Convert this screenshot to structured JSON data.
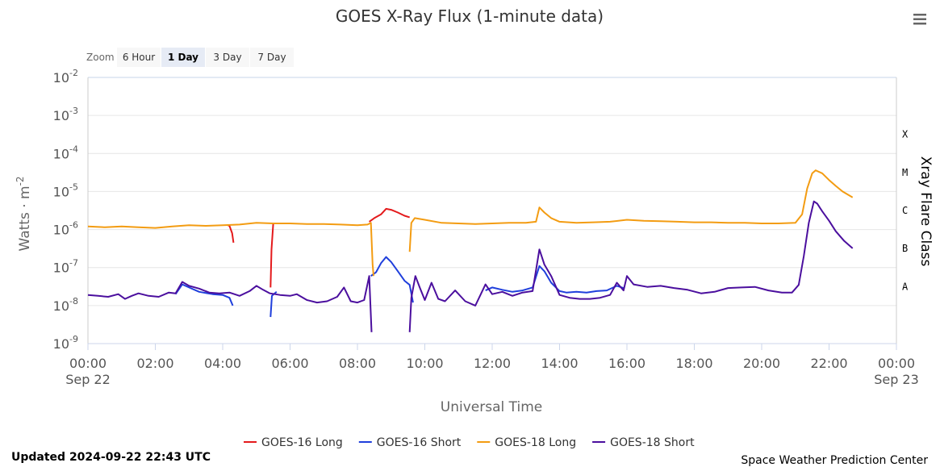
{
  "chart_data": {
    "type": "line",
    "title": "GOES X-Ray Flux (1-minute data)",
    "xlabel": "Universal Time",
    "ylabel": "Watts · m",
    "ylabel_sup": "-2",
    "right_axis_title": "Xray Flare Class",
    "y_scale": "log",
    "ylim": [
      1e-09,
      0.01
    ],
    "xlim": [
      0,
      24
    ],
    "grid": true,
    "legend_position": "bottom-center",
    "y_ticks": [
      {
        "base": "10",
        "exp": "-2",
        "value": 0.01
      },
      {
        "base": "10",
        "exp": "-3",
        "value": 0.001
      },
      {
        "base": "10",
        "exp": "-4",
        "value": 0.0001
      },
      {
        "base": "10",
        "exp": "-5",
        "value": 1e-05
      },
      {
        "base": "10",
        "exp": "-6",
        "value": 1e-06
      },
      {
        "base": "10",
        "exp": "-7",
        "value": 1e-07
      },
      {
        "base": "10",
        "exp": "-8",
        "value": 1e-08
      },
      {
        "base": "10",
        "exp": "-9",
        "value": 1e-09
      }
    ],
    "x_ticks": [
      {
        "label": "00:00",
        "sub": "Sep 22",
        "value": 0
      },
      {
        "label": "02:00",
        "sub": "",
        "value": 2
      },
      {
        "label": "04:00",
        "sub": "",
        "value": 4
      },
      {
        "label": "06:00",
        "sub": "",
        "value": 6
      },
      {
        "label": "08:00",
        "sub": "",
        "value": 8
      },
      {
        "label": "10:00",
        "sub": "",
        "value": 10
      },
      {
        "label": "12:00",
        "sub": "",
        "value": 12
      },
      {
        "label": "14:00",
        "sub": "",
        "value": 14
      },
      {
        "label": "16:00",
        "sub": "",
        "value": 16
      },
      {
        "label": "18:00",
        "sub": "",
        "value": 18
      },
      {
        "label": "20:00",
        "sub": "",
        "value": 20
      },
      {
        "label": "22:00",
        "sub": "",
        "value": 22
      },
      {
        "label": "00:00",
        "sub": "Sep 23",
        "value": 24
      }
    ],
    "flare_classes": [
      {
        "label": "X",
        "value": 0.0001
      },
      {
        "label": "M",
        "value": 1e-05
      },
      {
        "label": "C",
        "value": 1e-06
      },
      {
        "label": "B",
        "value": 1e-07
      },
      {
        "label": "A",
        "value": 1e-08
      }
    ],
    "series": [
      {
        "name": "GOES-16 Long",
        "color": "#e41a1c",
        "segments": [
          [
            [
              4.15,
              1.3e-06
            ],
            [
              4.2,
              1.25e-06
            ],
            [
              4.28,
              8e-07
            ],
            [
              4.32,
              4.5e-07
            ]
          ],
          [
            [
              5.42,
              3e-08
            ],
            [
              5.45,
              3e-07
            ],
            [
              5.5,
              1.4e-06
            ]
          ],
          [
            [
              8.35,
              1.6e-06
            ],
            [
              8.5,
              2e-06
            ],
            [
              8.7,
              2.5e-06
            ],
            [
              8.85,
              3.5e-06
            ],
            [
              9.0,
              3.3e-06
            ],
            [
              9.2,
              2.8e-06
            ],
            [
              9.4,
              2.3e-06
            ],
            [
              9.55,
              2.1e-06
            ]
          ]
        ]
      },
      {
        "name": "GOES-16 Short",
        "color": "#1f3fdc",
        "segments": [
          [
            [
              2.6,
              2e-08
            ],
            [
              2.8,
              3.6e-08
            ],
            [
              3.0,
              3e-08
            ],
            [
              3.3,
              2.3e-08
            ],
            [
              3.7,
              2e-08
            ],
            [
              4.0,
              1.9e-08
            ],
            [
              4.2,
              1.6e-08
            ],
            [
              4.3,
              1e-08
            ]
          ],
          [
            [
              5.42,
              5e-09
            ],
            [
              5.46,
              1.8e-08
            ],
            [
              5.6,
              2.3e-08
            ]
          ],
          [
            [
              8.4,
              6e-08
            ],
            [
              8.55,
              7.5e-08
            ],
            [
              8.7,
              1.3e-07
            ],
            [
              8.85,
              1.9e-07
            ],
            [
              9.0,
              1.4e-07
            ],
            [
              9.2,
              8e-08
            ],
            [
              9.4,
              4.5e-08
            ],
            [
              9.55,
              3.5e-08
            ],
            [
              9.65,
              1.2e-08
            ]
          ],
          [
            [
              11.8,
              2.5e-08
            ],
            [
              12.0,
              3e-08
            ],
            [
              12.3,
              2.6e-08
            ],
            [
              12.6,
              2.3e-08
            ],
            [
              12.9,
              2.5e-08
            ],
            [
              13.2,
              3e-08
            ],
            [
              13.4,
              1.1e-07
            ],
            [
              13.55,
              8e-08
            ],
            [
              13.75,
              4e-08
            ],
            [
              14.0,
              2.4e-08
            ],
            [
              14.2,
              2.2e-08
            ],
            [
              14.5,
              2.3e-08
            ],
            [
              14.8,
              2.2e-08
            ],
            [
              15.1,
              2.4e-08
            ],
            [
              15.4,
              2.5e-08
            ],
            [
              15.7,
              3.3e-08
            ],
            [
              15.9,
              2.9e-08
            ]
          ]
        ]
      },
      {
        "name": "GOES-18 Long",
        "color": "#f39c12",
        "segments": [
          [
            [
              0.0,
              1.2e-06
            ],
            [
              0.5,
              1.15e-06
            ],
            [
              1.0,
              1.2e-06
            ],
            [
              1.5,
              1.15e-06
            ],
            [
              2.0,
              1.1e-06
            ],
            [
              2.5,
              1.2e-06
            ],
            [
              3.0,
              1.3e-06
            ],
            [
              3.5,
              1.25e-06
            ],
            [
              4.0,
              1.3e-06
            ],
            [
              4.5,
              1.35e-06
            ],
            [
              5.0,
              1.5e-06
            ],
            [
              5.5,
              1.45e-06
            ],
            [
              6.0,
              1.45e-06
            ],
            [
              6.5,
              1.4e-06
            ],
            [
              7.0,
              1.4e-06
            ],
            [
              7.5,
              1.35e-06
            ],
            [
              8.0,
              1.3e-06
            ],
            [
              8.3,
              1.35e-06
            ],
            [
              8.4,
              1.5e-06
            ],
            [
              8.45,
              1.2e-07
            ],
            [
              8.48,
              6e-08
            ]
          ],
          [
            [
              9.55,
              2.6e-07
            ],
            [
              9.6,
              1.5e-06
            ],
            [
              9.7,
              2e-06
            ],
            [
              10.0,
              1.8e-06
            ],
            [
              10.5,
              1.5e-06
            ],
            [
              11.0,
              1.45e-06
            ],
            [
              11.5,
              1.4e-06
            ],
            [
              12.0,
              1.45e-06
            ],
            [
              12.5,
              1.5e-06
            ],
            [
              13.0,
              1.5e-06
            ],
            [
              13.3,
              1.6e-06
            ],
            [
              13.4,
              3.8e-06
            ],
            [
              13.55,
              2.8e-06
            ],
            [
              13.75,
              2e-06
            ],
            [
              14.0,
              1.6e-06
            ],
            [
              14.5,
              1.5e-06
            ],
            [
              15.0,
              1.55e-06
            ],
            [
              15.5,
              1.6e-06
            ],
            [
              16.0,
              1.8e-06
            ],
            [
              16.5,
              1.7e-06
            ],
            [
              17.0,
              1.65e-06
            ],
            [
              17.5,
              1.6e-06
            ],
            [
              18.0,
              1.55e-06
            ],
            [
              18.5,
              1.55e-06
            ],
            [
              19.0,
              1.5e-06
            ],
            [
              19.5,
              1.5e-06
            ],
            [
              20.0,
              1.45e-06
            ],
            [
              20.5,
              1.45e-06
            ],
            [
              21.0,
              1.5e-06
            ],
            [
              21.2,
              2.5e-06
            ],
            [
              21.35,
              1.2e-05
            ],
            [
              21.5,
              3e-05
            ],
            [
              21.6,
              3.6e-05
            ],
            [
              21.8,
              3e-05
            ],
            [
              22.0,
              2e-05
            ],
            [
              22.2,
              1.4e-05
            ],
            [
              22.4,
              1e-05
            ],
            [
              22.7,
              7e-06
            ]
          ]
        ]
      },
      {
        "name": "GOES-18 Short",
        "color": "#4b0f9e",
        "segments": [
          [
            [
              0.0,
              1.9e-08
            ],
            [
              0.3,
              1.8e-08
            ],
            [
              0.6,
              1.7e-08
            ],
            [
              0.9,
              2e-08
            ],
            [
              1.1,
              1.5e-08
            ],
            [
              1.3,
              1.8e-08
            ],
            [
              1.5,
              2.1e-08
            ],
            [
              1.8,
              1.8e-08
            ],
            [
              2.1,
              1.7e-08
            ],
            [
              2.4,
              2.2e-08
            ],
            [
              2.6,
              2.1e-08
            ],
            [
              2.8,
              4.2e-08
            ],
            [
              3.0,
              3.3e-08
            ],
            [
              3.3,
              2.8e-08
            ],
            [
              3.6,
              2.2e-08
            ],
            [
              3.9,
              2.1e-08
            ],
            [
              4.2,
              2.2e-08
            ],
            [
              4.5,
              1.8e-08
            ],
            [
              4.8,
              2.4e-08
            ],
            [
              5.0,
              3.3e-08
            ],
            [
              5.2,
              2.6e-08
            ],
            [
              5.4,
              2.1e-08
            ],
            [
              5.7,
              1.9e-08
            ],
            [
              6.0,
              1.8e-08
            ],
            [
              6.2,
              2e-08
            ],
            [
              6.5,
              1.4e-08
            ],
            [
              6.8,
              1.2e-08
            ],
            [
              7.1,
              1.3e-08
            ],
            [
              7.4,
              1.7e-08
            ],
            [
              7.6,
              3e-08
            ],
            [
              7.8,
              1.3e-08
            ],
            [
              8.0,
              1.2e-08
            ],
            [
              8.2,
              1.4e-08
            ],
            [
              8.35,
              6e-08
            ],
            [
              8.42,
              2e-09
            ]
          ],
          [
            [
              9.55,
              2e-09
            ],
            [
              9.6,
              1.6e-08
            ],
            [
              9.72,
              6e-08
            ],
            [
              9.85,
              3e-08
            ],
            [
              10.0,
              1.4e-08
            ],
            [
              10.2,
              4e-08
            ],
            [
              10.4,
              1.5e-08
            ],
            [
              10.6,
              1.3e-08
            ],
            [
              10.9,
              2.5e-08
            ],
            [
              11.2,
              1.3e-08
            ],
            [
              11.5,
              1e-08
            ],
            [
              11.8,
              3.6e-08
            ],
            [
              12.0,
              2e-08
            ],
            [
              12.3,
              2.3e-08
            ],
            [
              12.6,
              1.8e-08
            ],
            [
              12.9,
              2.2e-08
            ],
            [
              13.2,
              2.4e-08
            ],
            [
              13.4,
              3e-07
            ],
            [
              13.55,
              1.2e-07
            ],
            [
              13.75,
              6e-08
            ],
            [
              14.0,
              1.9e-08
            ],
            [
              14.3,
              1.6e-08
            ],
            [
              14.6,
              1.5e-08
            ],
            [
              14.9,
              1.5e-08
            ],
            [
              15.2,
              1.6e-08
            ],
            [
              15.5,
              1.9e-08
            ],
            [
              15.7,
              4e-08
            ],
            [
              15.9,
              2.5e-08
            ],
            [
              16.0,
              6e-08
            ],
            [
              16.2,
              3.6e-08
            ],
            [
              16.6,
              3.1e-08
            ],
            [
              17.0,
              3.3e-08
            ],
            [
              17.4,
              2.9e-08
            ],
            [
              17.8,
              2.6e-08
            ],
            [
              18.2,
              2.1e-08
            ],
            [
              18.6,
              2.3e-08
            ],
            [
              19.0,
              2.9e-08
            ],
            [
              19.4,
              3e-08
            ],
            [
              19.8,
              3.1e-08
            ],
            [
              20.2,
              2.5e-08
            ],
            [
              20.6,
              2.2e-08
            ],
            [
              20.9,
              2.2e-08
            ],
            [
              21.1,
              3.5e-08
            ],
            [
              21.25,
              2e-07
            ],
            [
              21.4,
              1.5e-06
            ],
            [
              21.55,
              5.5e-06
            ],
            [
              21.65,
              4.8e-06
            ],
            [
              21.8,
              3e-06
            ],
            [
              22.0,
              1.7e-06
            ],
            [
              22.2,
              9e-07
            ],
            [
              22.45,
              5e-07
            ],
            [
              22.7,
              3.2e-07
            ]
          ]
        ]
      }
    ]
  },
  "zoom": {
    "label": "Zoom",
    "buttons": [
      {
        "label": "6 Hour",
        "active": false
      },
      {
        "label": "1 Day",
        "active": true
      },
      {
        "label": "3 Day",
        "active": false
      },
      {
        "label": "7 Day",
        "active": false
      }
    ]
  },
  "footer": {
    "updated": "Updated 2024-09-22 22:43 UTC",
    "credit": "Space Weather Prediction Center"
  },
  "menu": {
    "icon": "hamburger-menu-icon"
  }
}
